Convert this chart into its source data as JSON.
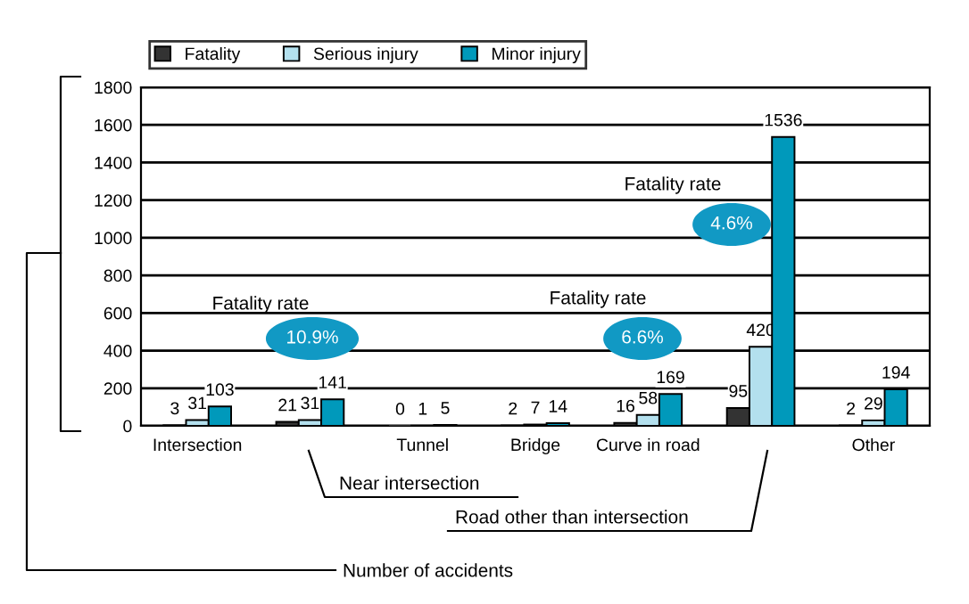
{
  "chart_data": {
    "type": "bar",
    "categories": [
      "Intersection",
      null,
      "Tunnel",
      "Bridge",
      "Curve in road",
      null,
      "Other"
    ],
    "series": [
      {
        "name": "Fatality",
        "color": "#333333",
        "values": [
          3,
          21,
          0,
          2,
          16,
          95,
          2
        ]
      },
      {
        "name": "Serious injury",
        "color": "#b3e0ee",
        "values": [
          31,
          31,
          1,
          7,
          58,
          420,
          29
        ]
      },
      {
        "name": "Minor injury",
        "color": "#0099bb",
        "values": [
          103,
          141,
          5,
          14,
          169,
          1536,
          194
        ]
      }
    ],
    "ylim": [
      0,
      1800
    ],
    "yticks": [
      0,
      200,
      400,
      600,
      800,
      1000,
      1200,
      1400,
      1600,
      1800
    ],
    "grid": "y",
    "legend": "top",
    "data_labels": true,
    "annotations": [
      "Fatality rate",
      "10.9%",
      "Fatality rate",
      "6.6%",
      "Fatality rate",
      "4.6%",
      "Near intersection",
      "Road other than intersection",
      "Number of accidents"
    ]
  }
}
